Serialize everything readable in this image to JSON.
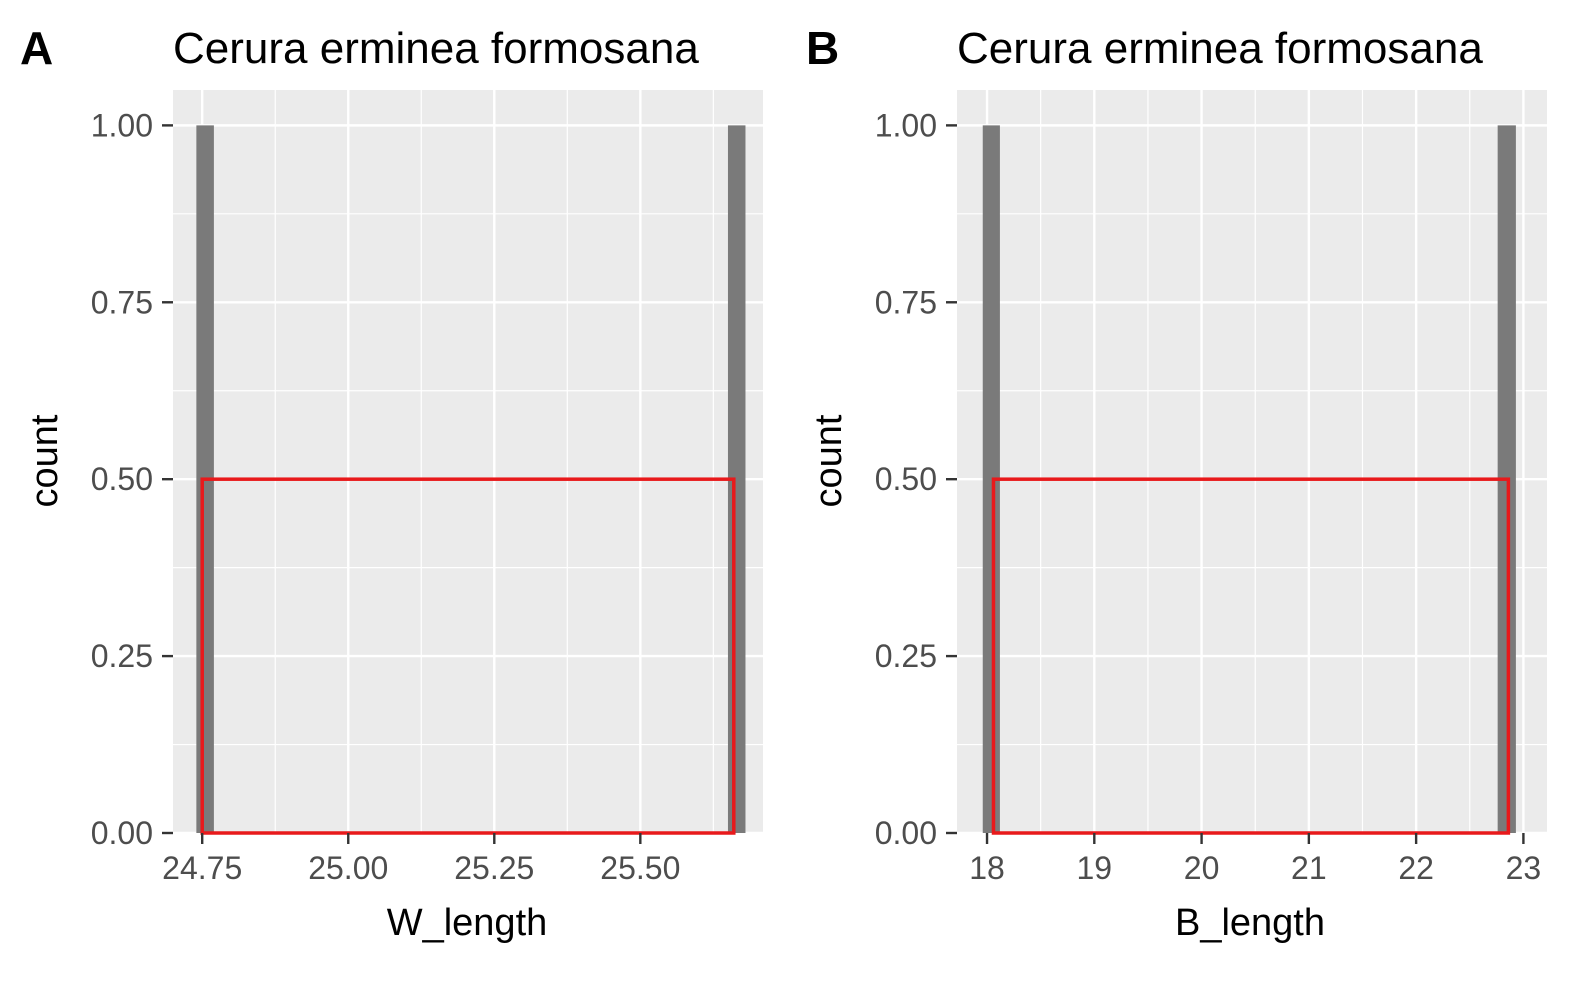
{
  "chart_data": [
    {
      "type": "bar",
      "panel_label": "A",
      "title": "Cerura erminea formosana",
      "xlabel": "W_length",
      "ylabel": "count",
      "xlim": [
        24.7,
        25.71
      ],
      "ylim": [
        0,
        1.05
      ],
      "x_ticks": [
        24.75,
        25.0,
        25.25,
        25.5
      ],
      "x_tick_labels": [
        "24.75",
        "25.00",
        "25.25",
        "25.50"
      ],
      "y_ticks": [
        0,
        0.25,
        0.5,
        0.75,
        1.0
      ],
      "y_tick_labels": [
        "0.00",
        "0.25",
        "0.50",
        "0.75",
        "1.00"
      ],
      "bars": [
        {
          "xmin": 24.74,
          "xmax": 24.77,
          "count": 1
        },
        {
          "xmin": 25.65,
          "xmax": 25.68,
          "count": 1
        }
      ],
      "highlight_box": {
        "xmin": 24.75,
        "xmax": 25.66,
        "ymin": 0,
        "ymax": 0.5
      },
      "grid": true,
      "colors": {
        "panel_bg": "#ebebeb",
        "bar": "#7a7a7a",
        "box": "#e8191b",
        "grid": "#ffffff"
      }
    },
    {
      "type": "bar",
      "panel_label": "B",
      "title": "Cerura erminea formosana",
      "xlabel": "B_length",
      "ylabel": "count",
      "xlim": [
        17.72,
        23.22
      ],
      "ylim": [
        0,
        1.05
      ],
      "x_ticks": [
        18,
        19,
        20,
        21,
        22,
        23
      ],
      "x_tick_labels": [
        "18",
        "19",
        "20",
        "21",
        "22",
        "23"
      ],
      "y_ticks": [
        0,
        0.25,
        0.5,
        0.75,
        1.0
      ],
      "y_tick_labels": [
        "0.00",
        "0.25",
        "0.50",
        "0.75",
        "1.00"
      ],
      "bars": [
        {
          "xmin": 17.96,
          "xmax": 18.12,
          "count": 1
        },
        {
          "xmin": 22.76,
          "xmax": 22.93,
          "count": 1
        }
      ],
      "highlight_box": {
        "xmin": 18.06,
        "xmax": 22.86,
        "ymin": 0,
        "ymax": 0.5
      },
      "grid": true,
      "colors": {
        "panel_bg": "#ebebeb",
        "bar": "#7a7a7a",
        "box": "#e8191b",
        "grid": "#ffffff"
      }
    }
  ]
}
